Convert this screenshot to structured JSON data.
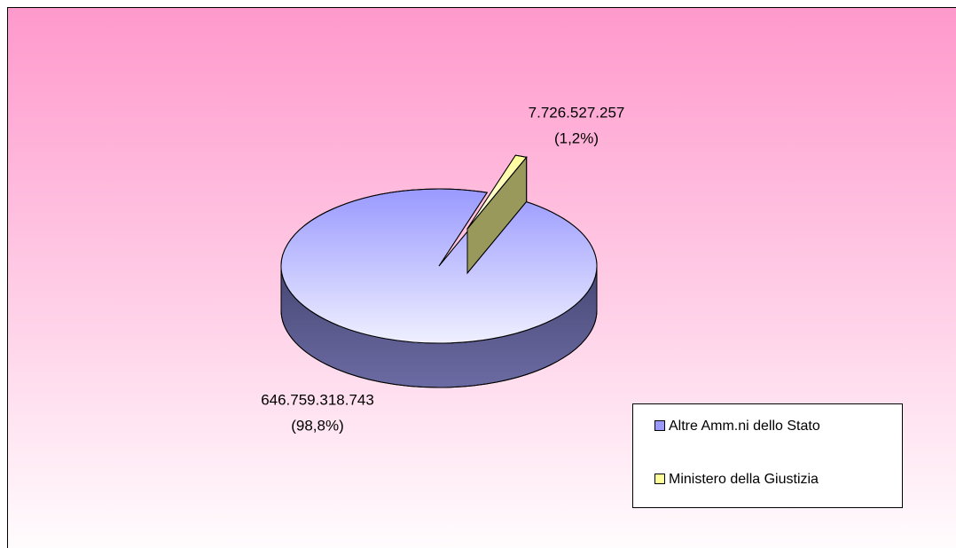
{
  "chart_data": {
    "type": "pie3d",
    "categories": [
      "Altre Amm.ni dello Stato",
      "Ministero della Giustizia"
    ],
    "values": [
      646759318743,
      7726527257
    ],
    "value_labels": [
      "646.759.318.743",
      "7.726.527.257"
    ],
    "percent_labels": [
      "(98,8%)",
      "(1,2%)"
    ],
    "colors": [
      "#9999ff",
      "#ffff99"
    ],
    "legend": "right-bottom"
  }
}
